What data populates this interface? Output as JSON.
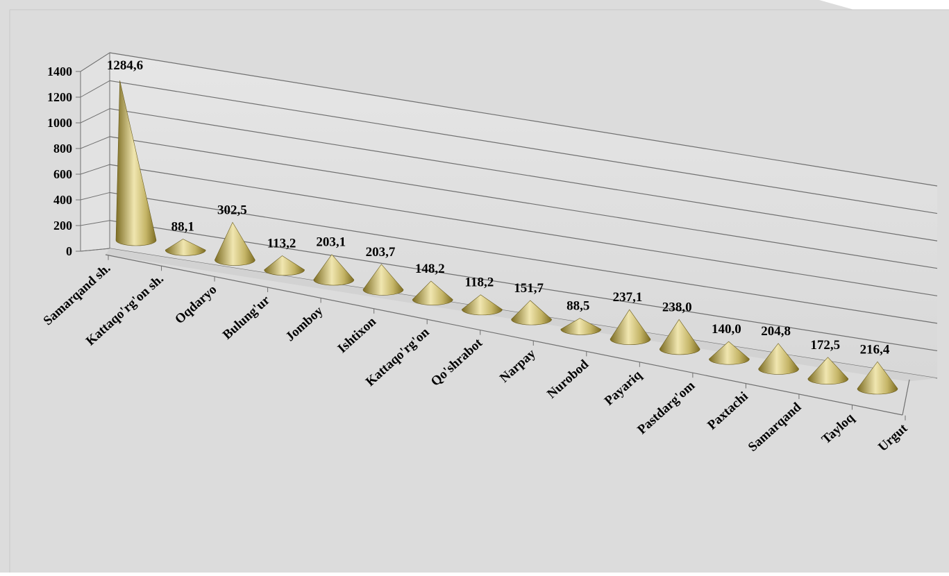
{
  "chart_data": {
    "type": "bar",
    "mark_shape": "cone-3d",
    "categories": [
      "Samarqand sh.",
      "Kattaqo'rg'on sh.",
      "Oqdaryo",
      "Bulung'ur",
      "Jomboy",
      "Ishtixon",
      "Kattaqo'rg'on",
      "Qo'shrabot",
      "Narpay",
      "Nurobod",
      "Payariq",
      "Pastdarg'om",
      "Paxtachi",
      "Samarqand",
      "Tayloq",
      "Urgut"
    ],
    "values": [
      1284.6,
      88.1,
      302.5,
      113.2,
      203.1,
      203.7,
      148.2,
      118.2,
      151.7,
      88.5,
      237.1,
      238.0,
      140.0,
      204.8,
      172.5,
      216.4
    ],
    "data_labels": [
      "1284,6",
      "88,1",
      "302,5",
      "113,2",
      "203,1",
      "203,7",
      "148,2",
      "118,2",
      "151,7",
      "88,5",
      "237,1",
      "238,0",
      "140,0",
      "204,8",
      "172,5",
      "216,4"
    ],
    "y_ticks": [
      "0",
      "200",
      "400",
      "600",
      "800",
      "1000",
      "1200",
      "1400"
    ],
    "ylim": [
      0,
      1400
    ],
    "grid": true,
    "legend": false,
    "title": "",
    "xlabel": "",
    "ylabel": "",
    "colors": {
      "background": "#dcdcdc",
      "cone_light": "#f0e6b0",
      "cone_mid": "#c4b466",
      "cone_dark": "#7c6c22",
      "grid": "#707070",
      "text": "#000000"
    }
  }
}
